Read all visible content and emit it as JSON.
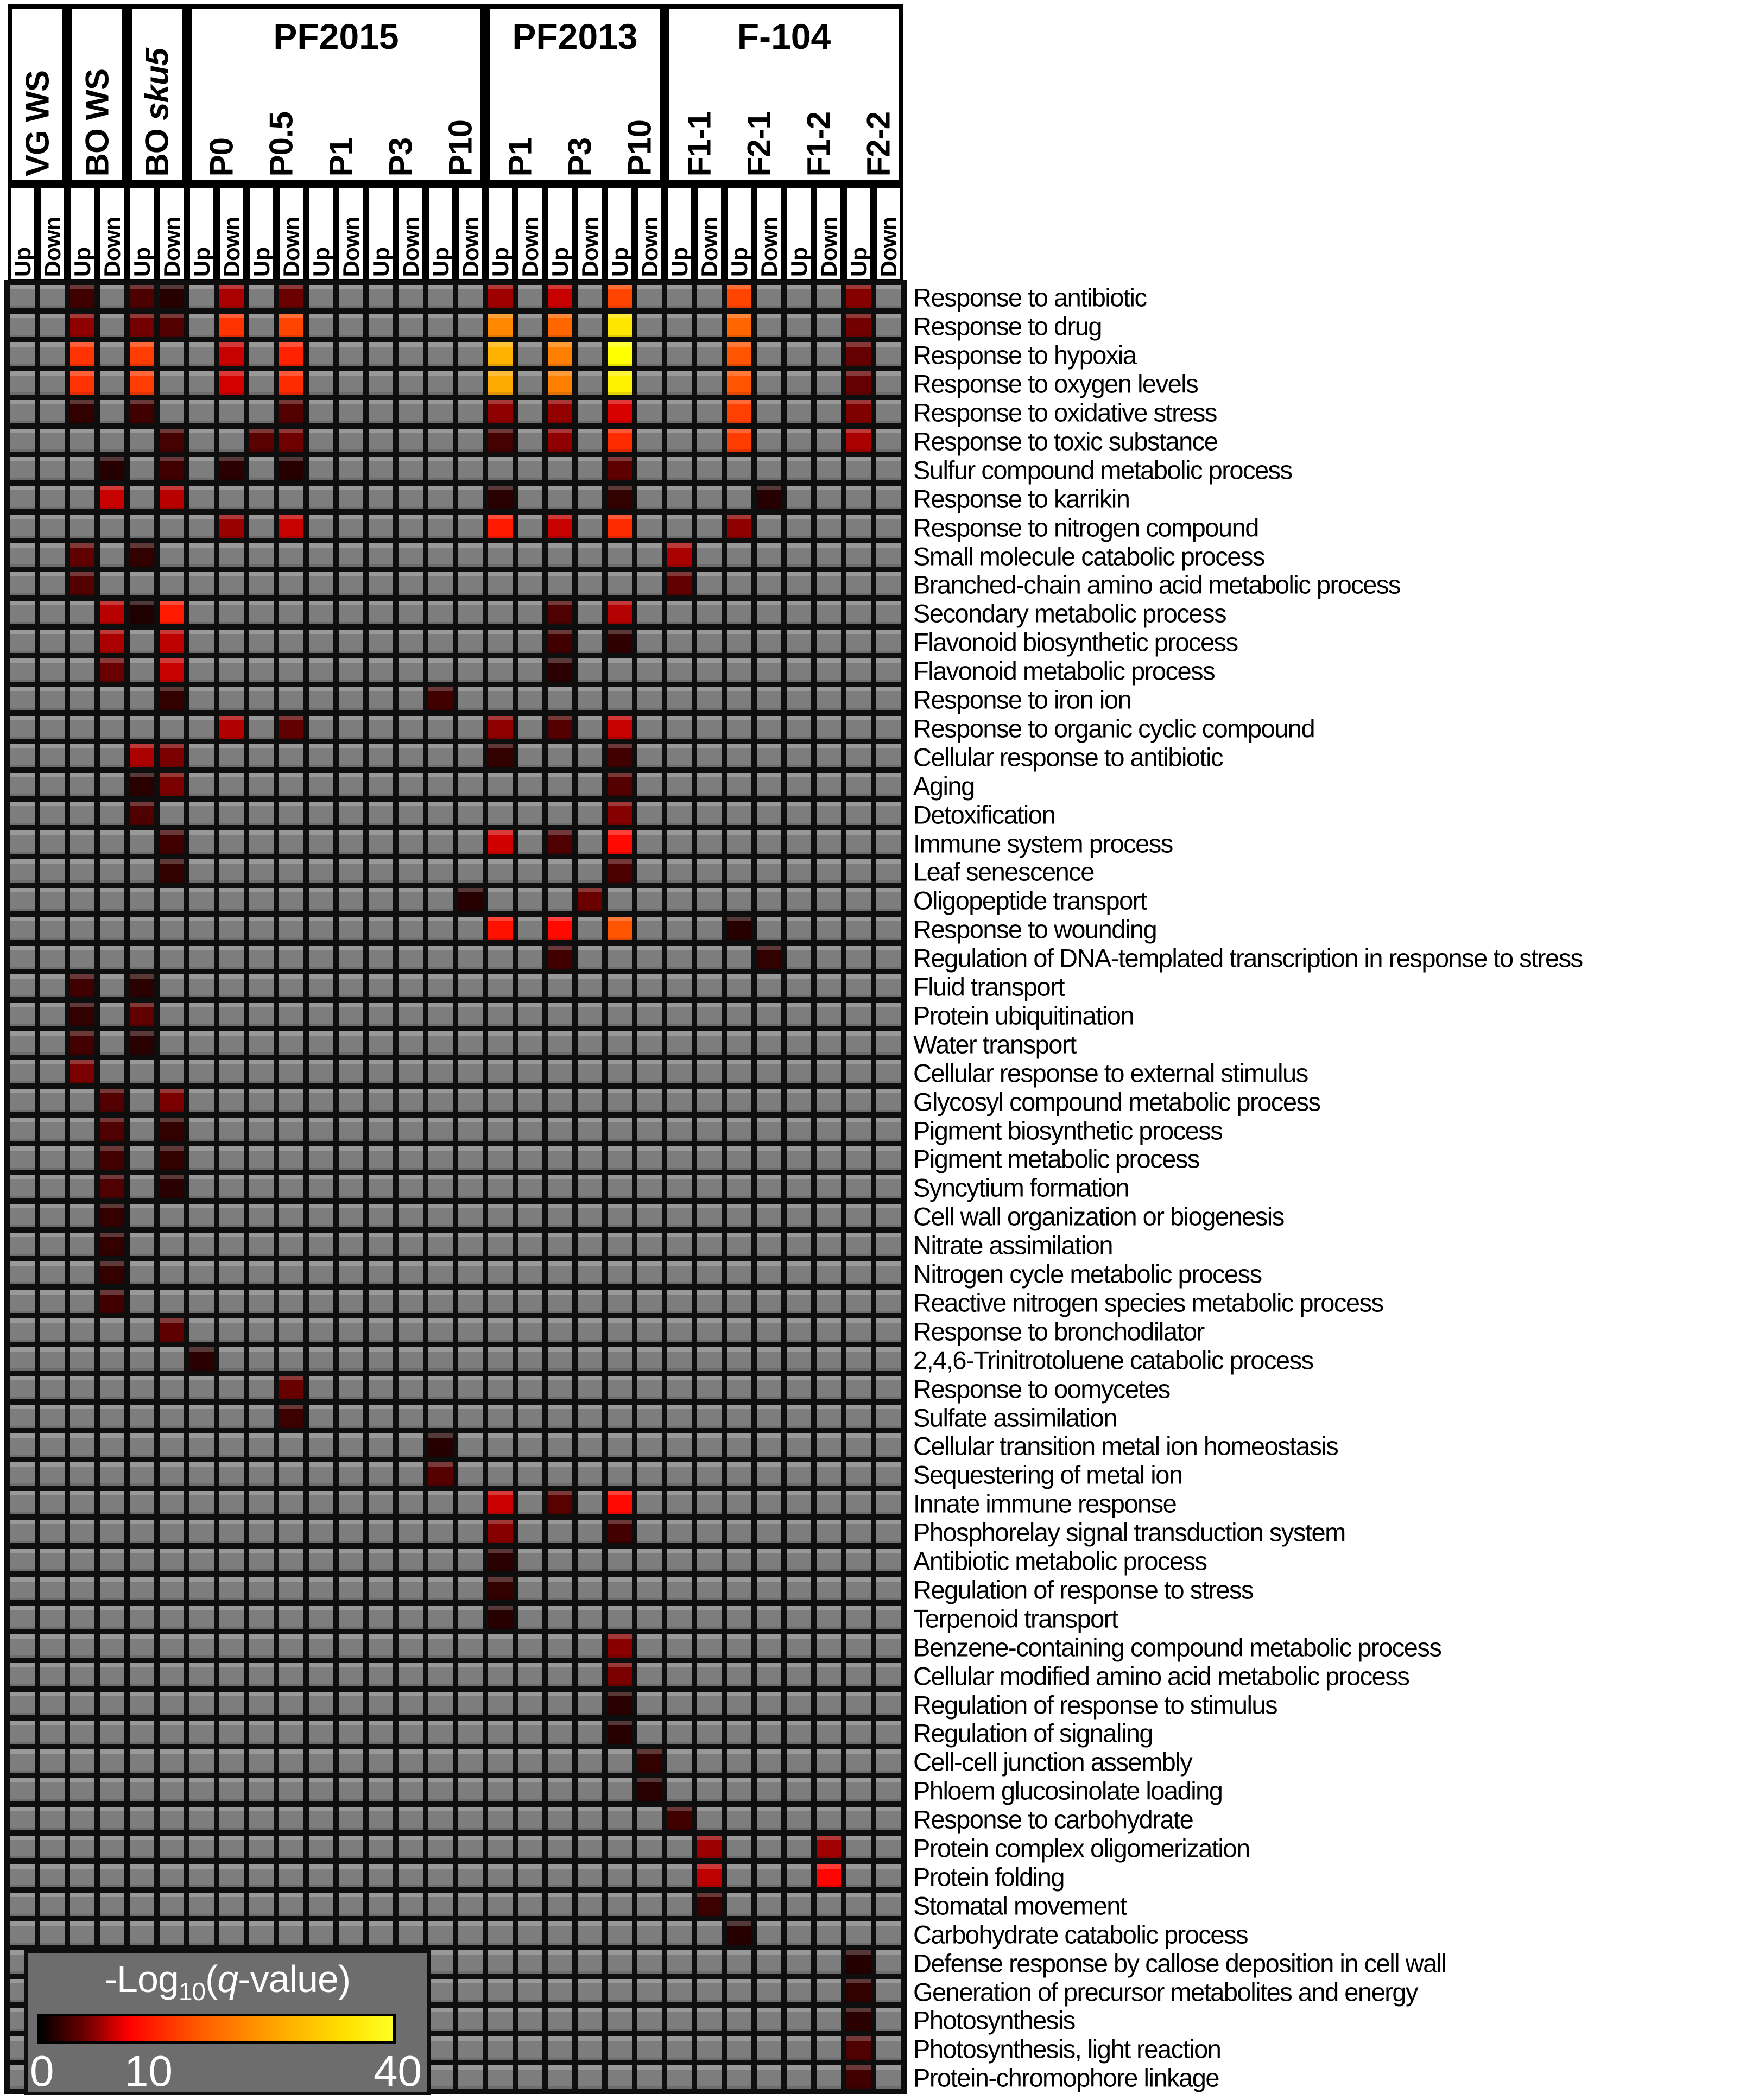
{
  "header": {
    "groups": [
      {
        "label": "VG WS",
        "style": "rotated",
        "samples": [
          "VG WS"
        ]
      },
      {
        "label": "BO WS",
        "style": "rotated",
        "samples": [
          "BO WS"
        ]
      },
      {
        "label": "BO sku5",
        "style": "rotated",
        "label_prefix": "BO ",
        "label_italic": "sku5",
        "samples": [
          "BO sku5"
        ]
      },
      {
        "label": "PF2015",
        "style": "titled",
        "samples": [
          "P0",
          "P0.5",
          "P1",
          "P3",
          "P10"
        ]
      },
      {
        "label": "PF2013",
        "style": "titled",
        "samples": [
          "P1",
          "P3",
          "P10"
        ]
      },
      {
        "label": "F-104",
        "style": "titled",
        "samples": [
          "F1-1",
          "F2-1",
          "F1-2",
          "F2-2"
        ]
      }
    ],
    "updown": [
      "Up",
      "Down"
    ]
  },
  "rows": [
    "Response to antibiotic",
    "Response to drug",
    "Response to hypoxia",
    "Response to oxygen levels",
    "Response to oxidative stress",
    "Response to toxic substance",
    "Sulfur compound metabolic process",
    "Response to karrikin",
    "Response to nitrogen compound",
    "Small molecule catabolic process",
    "Branched-chain amino acid metabolic process",
    "Secondary metabolic process",
    "Flavonoid biosynthetic process",
    "Flavonoid metabolic process",
    "Response to iron ion",
    "Response to organic cyclic compound",
    "Cellular response to antibiotic",
    "Aging",
    "Detoxification",
    "Immune system process",
    "Leaf senescence",
    "Oligopeptide transport",
    "Response to wounding",
    "Regulation of DNA-templated transcription in response to stress",
    "Fluid transport",
    "Protein ubiquitination",
    "Water transport",
    "Cellular response to external stimulus",
    "Glycosyl compound metabolic process",
    "Pigment biosynthetic process",
    "Pigment metabolic process",
    "Syncytium formation",
    "Cell wall organization or biogenesis",
    "Nitrate assimilation",
    "Nitrogen cycle metabolic process",
    "Reactive nitrogen species metabolic process",
    "Response to bronchodilator",
    "2,4,6-Trinitrotoluene catabolic process",
    "Response to oomycetes",
    "Sulfate assimilation",
    "Cellular transition metal ion homeostasis",
    "Sequestering of metal ion",
    "Innate immune response",
    "Phosphorelay signal transduction system",
    "Antibiotic metabolic process",
    "Regulation of response to stress",
    "Terpenoid transport",
    "Benzene-containing compound metabolic process",
    "Cellular modified amino acid metabolic process",
    "Regulation of response to stimulus",
    "Regulation of signaling",
    "Cell-cell junction assembly",
    "Phloem glucosinolate loading",
    "Response to carbohydrate",
    "Protein complex oligomerization",
    "Protein folding",
    "Stomatal movement",
    "Carbohydrate catabolic process",
    "Defense response by callose deposition in cell wall",
    "Generation of precursor metabolites and energy",
    "Photosynthesis",
    "Photosynthesis, light reaction",
    "Protein-chromophore linkage"
  ],
  "chart_data": {
    "type": "heatmap",
    "title": "GO-term enrichment heatmap",
    "value_label": "-Log10(q-value)",
    "value_range": [
      0,
      40
    ],
    "no_data_color": "#7d7d7d",
    "colormap_stops": {
      "0": "#000000",
      "10": "#ff0000",
      "40": "#ffff00"
    },
    "columns": [
      "VG WS Up",
      "VG WS Down",
      "BO WS Up",
      "BO WS Down",
      "BO sku5 Up",
      "BO sku5 Down",
      "PF2015 P0 Up",
      "PF2015 P0 Down",
      "PF2015 P0.5 Up",
      "PF2015 P0.5 Down",
      "PF2015 P1 Up",
      "PF2015 P1 Down",
      "PF2015 P3 Up",
      "PF2015 P3 Down",
      "PF2015 P10 Up",
      "PF2015 P10 Down",
      "PF2013 P1 Up",
      "PF2013 P1 Down",
      "PF2013 P3 Up",
      "PF2013 P3 Down",
      "PF2013 P10 Up",
      "PF2013 P10 Down",
      "F-104 F1-1 Up",
      "F-104 F1-1 Down",
      "F-104 F2-1 Up",
      "F-104 F2-1 Down",
      "F-104 F1-2 Up",
      "F-104 F1-2 Down",
      "F-104 F2-2 Up",
      "F-104 F2-2 Down"
    ],
    "cells": [
      [
        0,
        2,
        2.5
      ],
      [
        0,
        4,
        3
      ],
      [
        0,
        5,
        1.5
      ],
      [
        0,
        7,
        6.7
      ],
      [
        0,
        9,
        4.2
      ],
      [
        0,
        16,
        6.2
      ],
      [
        0,
        18,
        7.8
      ],
      [
        0,
        20,
        18
      ],
      [
        0,
        24,
        18
      ],
      [
        0,
        28,
        5.3
      ],
      [
        1,
        2,
        5.6
      ],
      [
        1,
        4,
        4.5
      ],
      [
        1,
        5,
        3.2
      ],
      [
        1,
        7,
        16
      ],
      [
        1,
        9,
        18
      ],
      [
        1,
        16,
        26
      ],
      [
        1,
        18,
        22
      ],
      [
        1,
        20,
        37
      ],
      [
        1,
        24,
        22
      ],
      [
        1,
        28,
        4.5
      ],
      [
        2,
        2,
        16
      ],
      [
        2,
        4,
        17
      ],
      [
        2,
        7,
        7.8
      ],
      [
        2,
        9,
        14
      ],
      [
        2,
        16,
        31
      ],
      [
        2,
        18,
        25
      ],
      [
        2,
        20,
        40
      ],
      [
        2,
        24,
        20
      ],
      [
        2,
        28,
        4
      ],
      [
        3,
        2,
        16
      ],
      [
        3,
        4,
        17
      ],
      [
        3,
        7,
        8.3
      ],
      [
        3,
        9,
        15
      ],
      [
        3,
        16,
        30
      ],
      [
        3,
        18,
        25
      ],
      [
        3,
        20,
        38.5
      ],
      [
        3,
        24,
        20
      ],
      [
        3,
        28,
        4
      ],
      [
        4,
        2,
        2
      ],
      [
        4,
        4,
        2.5
      ],
      [
        4,
        9,
        3.2
      ],
      [
        4,
        16,
        5.6
      ],
      [
        4,
        18,
        5.8
      ],
      [
        4,
        20,
        8.5
      ],
      [
        4,
        24,
        17.5
      ],
      [
        4,
        28,
        5
      ],
      [
        5,
        5,
        2.7
      ],
      [
        5,
        8,
        3.5
      ],
      [
        5,
        9,
        4.4
      ],
      [
        5,
        16,
        2.7
      ],
      [
        5,
        18,
        5.6
      ],
      [
        5,
        20,
        15
      ],
      [
        5,
        24,
        17
      ],
      [
        5,
        28,
        6.7
      ],
      [
        6,
        3,
        1.5
      ],
      [
        6,
        5,
        2.5
      ],
      [
        6,
        7,
        1.7
      ],
      [
        6,
        9,
        1.5
      ],
      [
        6,
        20,
        3.7
      ],
      [
        7,
        3,
        7.8
      ],
      [
        7,
        5,
        7.2
      ],
      [
        7,
        16,
        1.6
      ],
      [
        7,
        20,
        2
      ],
      [
        7,
        25,
        1.5
      ],
      [
        8,
        7,
        6
      ],
      [
        8,
        9,
        7.8
      ],
      [
        8,
        16,
        13
      ],
      [
        8,
        18,
        7.8
      ],
      [
        8,
        20,
        15
      ],
      [
        8,
        24,
        5.6
      ],
      [
        9,
        2,
        3.8
      ],
      [
        9,
        4,
        2
      ],
      [
        9,
        22,
        6.7
      ],
      [
        10,
        2,
        3.2
      ],
      [
        10,
        22,
        3.8
      ],
      [
        11,
        3,
        7.2
      ],
      [
        11,
        4,
        1.2
      ],
      [
        11,
        5,
        13
      ],
      [
        11,
        18,
        3.1
      ],
      [
        11,
        20,
        7
      ],
      [
        12,
        3,
        6.7
      ],
      [
        12,
        5,
        7.4
      ],
      [
        12,
        18,
        2.5
      ],
      [
        12,
        20,
        1.8
      ],
      [
        13,
        3,
        4.2
      ],
      [
        13,
        5,
        7.8
      ],
      [
        13,
        18,
        1.7
      ],
      [
        14,
        5,
        2
      ],
      [
        14,
        14,
        2.5
      ],
      [
        15,
        7,
        6.9
      ],
      [
        15,
        9,
        3.8
      ],
      [
        15,
        16,
        5.6
      ],
      [
        15,
        18,
        3.3
      ],
      [
        15,
        20,
        7.8
      ],
      [
        16,
        4,
        6.7
      ],
      [
        16,
        5,
        4.8
      ],
      [
        16,
        16,
        2
      ],
      [
        16,
        20,
        2.5
      ],
      [
        17,
        4,
        1.6
      ],
      [
        17,
        5,
        4.8
      ],
      [
        17,
        20,
        3.3
      ],
      [
        18,
        4,
        3.1
      ],
      [
        18,
        20,
        5.2
      ],
      [
        19,
        5,
        2.5
      ],
      [
        19,
        16,
        8.2
      ],
      [
        19,
        18,
        3.1
      ],
      [
        19,
        20,
        11
      ],
      [
        20,
        5,
        2
      ],
      [
        20,
        20,
        3
      ],
      [
        21,
        15,
        1.5
      ],
      [
        21,
        19,
        4.2
      ],
      [
        22,
        16,
        12
      ],
      [
        22,
        18,
        11
      ],
      [
        22,
        20,
        20
      ],
      [
        22,
        24,
        1.5
      ],
      [
        23,
        18,
        2.5
      ],
      [
        23,
        25,
        2
      ],
      [
        24,
        2,
        2.5
      ],
      [
        24,
        4,
        1.7
      ],
      [
        25,
        2,
        2
      ],
      [
        25,
        4,
        3.8
      ],
      [
        26,
        2,
        2.6
      ],
      [
        26,
        4,
        1.6
      ],
      [
        27,
        2,
        4.8
      ],
      [
        28,
        3,
        3.2
      ],
      [
        28,
        5,
        4.8
      ],
      [
        29,
        3,
        3.1
      ],
      [
        29,
        5,
        2
      ],
      [
        30,
        3,
        2.6
      ],
      [
        30,
        5,
        2
      ],
      [
        31,
        3,
        3.1
      ],
      [
        31,
        5,
        1.7
      ],
      [
        32,
        3,
        2
      ],
      [
        33,
        3,
        2
      ],
      [
        34,
        3,
        2
      ],
      [
        35,
        3,
        2.5
      ],
      [
        36,
        5,
        3.7
      ],
      [
        37,
        6,
        1.7
      ],
      [
        38,
        9,
        4.1
      ],
      [
        39,
        9,
        2.4
      ],
      [
        40,
        14,
        1.5
      ],
      [
        41,
        14,
        3.4
      ],
      [
        42,
        16,
        8
      ],
      [
        42,
        18,
        3.5
      ],
      [
        42,
        20,
        11
      ],
      [
        43,
        16,
        5.3
      ],
      [
        43,
        20,
        2.6
      ],
      [
        44,
        16,
        1.7
      ],
      [
        45,
        16,
        2
      ],
      [
        46,
        16,
        1.5
      ],
      [
        47,
        20,
        5.4
      ],
      [
        48,
        20,
        4.8
      ],
      [
        49,
        20,
        1.7
      ],
      [
        50,
        20,
        1.5
      ],
      [
        51,
        21,
        2
      ],
      [
        52,
        21,
        1.6
      ],
      [
        53,
        22,
        2.5
      ],
      [
        54,
        23,
        6.1
      ],
      [
        54,
        27,
        6.3
      ],
      [
        55,
        23,
        7.4
      ],
      [
        55,
        27,
        10.5
      ],
      [
        56,
        23,
        2.4
      ],
      [
        57,
        24,
        1.5
      ],
      [
        58,
        28,
        1.4
      ],
      [
        59,
        28,
        2
      ],
      [
        60,
        28,
        1.7
      ],
      [
        61,
        28,
        3.1
      ],
      [
        62,
        28,
        2.5
      ]
    ]
  },
  "legend": {
    "title": {
      "p1": "-Log",
      "sub": "10",
      "p2": "(",
      "q": "q",
      "p3": "-value)"
    },
    "ticks": [
      "0",
      "10",
      "40"
    ]
  }
}
